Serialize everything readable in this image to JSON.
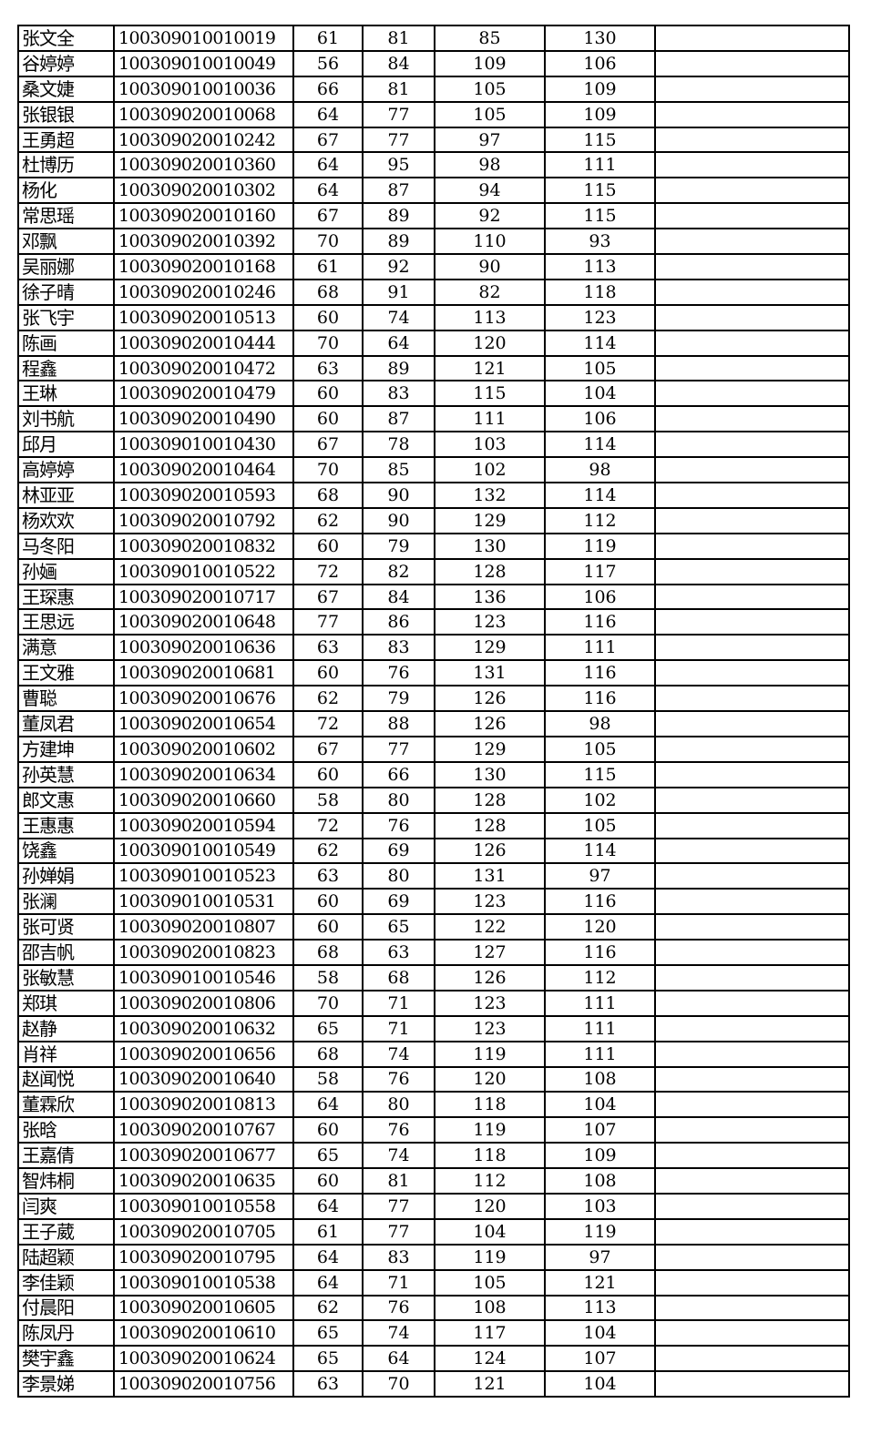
{
  "table": {
    "rows": [
      [
        "张文全",
        "100309010010019",
        "61",
        "81",
        "85",
        "130",
        ""
      ],
      [
        "谷婷婷",
        "100309010010049",
        "56",
        "84",
        "109",
        "106",
        ""
      ],
      [
        "桑文婕",
        "100309010010036",
        "66",
        "81",
        "105",
        "109",
        ""
      ],
      [
        "张银银",
        "100309020010068",
        "64",
        "77",
        "105",
        "109",
        ""
      ],
      [
        "王勇超",
        "100309020010242",
        "67",
        "77",
        "97",
        "115",
        ""
      ],
      [
        "杜博历",
        "100309020010360",
        "64",
        "95",
        "98",
        "111",
        ""
      ],
      [
        "杨化",
        "100309020010302",
        "64",
        "87",
        "94",
        "115",
        ""
      ],
      [
        "常思瑶",
        "100309020010160",
        "67",
        "89",
        "92",
        "115",
        ""
      ],
      [
        "邓飘",
        "100309020010392",
        "70",
        "89",
        "110",
        "93",
        ""
      ],
      [
        "吴丽娜",
        "100309020010168",
        "61",
        "92",
        "90",
        "113",
        ""
      ],
      [
        "徐子晴",
        "100309020010246",
        "68",
        "91",
        "82",
        "118",
        ""
      ],
      [
        "张飞宇",
        "100309020010513",
        "60",
        "74",
        "113",
        "123",
        ""
      ],
      [
        "陈画",
        "100309020010444",
        "70",
        "64",
        "120",
        "114",
        ""
      ],
      [
        "程鑫",
        "100309020010472",
        "63",
        "89",
        "121",
        "105",
        ""
      ],
      [
        "王琳",
        "100309020010479",
        "60",
        "83",
        "115",
        "104",
        ""
      ],
      [
        "刘书航",
        "100309020010490",
        "60",
        "87",
        "111",
        "106",
        ""
      ],
      [
        "邱月",
        "100309010010430",
        "67",
        "78",
        "103",
        "114",
        ""
      ],
      [
        "高婷婷",
        "100309020010464",
        "70",
        "85",
        "102",
        "98",
        ""
      ],
      [
        "林亚亚",
        "100309020010593",
        "68",
        "90",
        "132",
        "114",
        ""
      ],
      [
        "杨欢欢",
        "100309020010792",
        "62",
        "90",
        "129",
        "112",
        ""
      ],
      [
        "马冬阳",
        "100309020010832",
        "60",
        "79",
        "130",
        "119",
        ""
      ],
      [
        "孙婳",
        "100309010010522",
        "72",
        "82",
        "128",
        "117",
        ""
      ],
      [
        "王琛惠",
        "100309020010717",
        "67",
        "84",
        "136",
        "106",
        ""
      ],
      [
        "王思远",
        "100309020010648",
        "77",
        "86",
        "123",
        "116",
        ""
      ],
      [
        "满意",
        "100309020010636",
        "63",
        "83",
        "129",
        "111",
        ""
      ],
      [
        "王文雅",
        "100309020010681",
        "60",
        "76",
        "131",
        "116",
        ""
      ],
      [
        "曹聪",
        "100309020010676",
        "62",
        "79",
        "126",
        "116",
        ""
      ],
      [
        "董凤君",
        "100309020010654",
        "72",
        "88",
        "126",
        "98",
        ""
      ],
      [
        "方建坤",
        "100309020010602",
        "67",
        "77",
        "129",
        "105",
        ""
      ],
      [
        "孙英慧",
        "100309020010634",
        "60",
        "66",
        "130",
        "115",
        ""
      ],
      [
        "郎文惠",
        "100309020010660",
        "58",
        "80",
        "128",
        "102",
        ""
      ],
      [
        "王惠惠",
        "100309020010594",
        "72",
        "76",
        "128",
        "105",
        ""
      ],
      [
        "饶鑫",
        "100309010010549",
        "62",
        "69",
        "126",
        "114",
        ""
      ],
      [
        "孙婵娟",
        "100309010010523",
        "63",
        "80",
        "131",
        "97",
        ""
      ],
      [
        "张澜",
        "100309010010531",
        "60",
        "69",
        "123",
        "116",
        ""
      ],
      [
        "张可贤",
        "100309020010807",
        "60",
        "65",
        "122",
        "120",
        ""
      ],
      [
        "邵吉帆",
        "100309020010823",
        "68",
        "63",
        "127",
        "116",
        ""
      ],
      [
        "张敏慧",
        "100309010010546",
        "58",
        "68",
        "126",
        "112",
        ""
      ],
      [
        "郑琪",
        "100309020010806",
        "70",
        "71",
        "123",
        "111",
        ""
      ],
      [
        "赵静",
        "100309020010632",
        "65",
        "71",
        "123",
        "111",
        ""
      ],
      [
        "肖祥",
        "100309020010656",
        "68",
        "74",
        "119",
        "111",
        ""
      ],
      [
        "赵闻悦",
        "100309020010640",
        "58",
        "76",
        "120",
        "108",
        ""
      ],
      [
        "董霖欣",
        "100309020010813",
        "64",
        "80",
        "118",
        "104",
        ""
      ],
      [
        "张晗",
        "100309020010767",
        "60",
        "76",
        "119",
        "107",
        ""
      ],
      [
        "王嘉倩",
        "100309020010677",
        "65",
        "74",
        "118",
        "109",
        ""
      ],
      [
        "智炜桐",
        "100309020010635",
        "60",
        "81",
        "112",
        "108",
        ""
      ],
      [
        "闫爽",
        "100309010010558",
        "64",
        "77",
        "120",
        "103",
        ""
      ],
      [
        "王子葳",
        "100309020010705",
        "61",
        "77",
        "104",
        "119",
        ""
      ],
      [
        "陆超颖",
        "100309020010795",
        "64",
        "83",
        "119",
        "97",
        ""
      ],
      [
        "李佳颖",
        "100309010010538",
        "64",
        "71",
        "105",
        "121",
        ""
      ],
      [
        "付晨阳",
        "100309020010605",
        "62",
        "76",
        "108",
        "113",
        ""
      ],
      [
        "陈凤丹",
        "100309020010610",
        "65",
        "74",
        "117",
        "104",
        ""
      ],
      [
        "樊宇鑫",
        "100309020010624",
        "65",
        "64",
        "124",
        "107",
        ""
      ],
      [
        "李景娣",
        "100309020010756",
        "63",
        "70",
        "121",
        "104",
        ""
      ]
    ]
  }
}
